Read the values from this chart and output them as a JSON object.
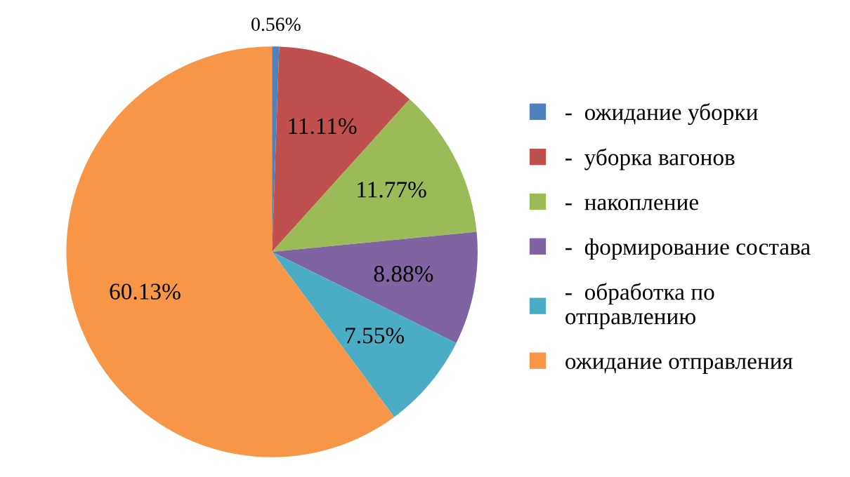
{
  "chart_data": {
    "type": "pie",
    "categories": [
      "-  ожидание уборки",
      "-  уборка вагонов",
      "-  накопление",
      "-  формирование состава",
      "-  обработка по\nотправлению",
      "ожидание отправления"
    ],
    "values": [
      0.56,
      11.11,
      11.77,
      8.88,
      7.55,
      60.13
    ],
    "value_labels": [
      "0.56%",
      "11.11%",
      "11.77%",
      "8.88%",
      "7.55%",
      "60.13%"
    ],
    "colors": [
      "#4f81bd",
      "#c0504d",
      "#9bbb59",
      "#8064a2",
      "#4bacc6",
      "#f79646"
    ],
    "legend": "right"
  }
}
